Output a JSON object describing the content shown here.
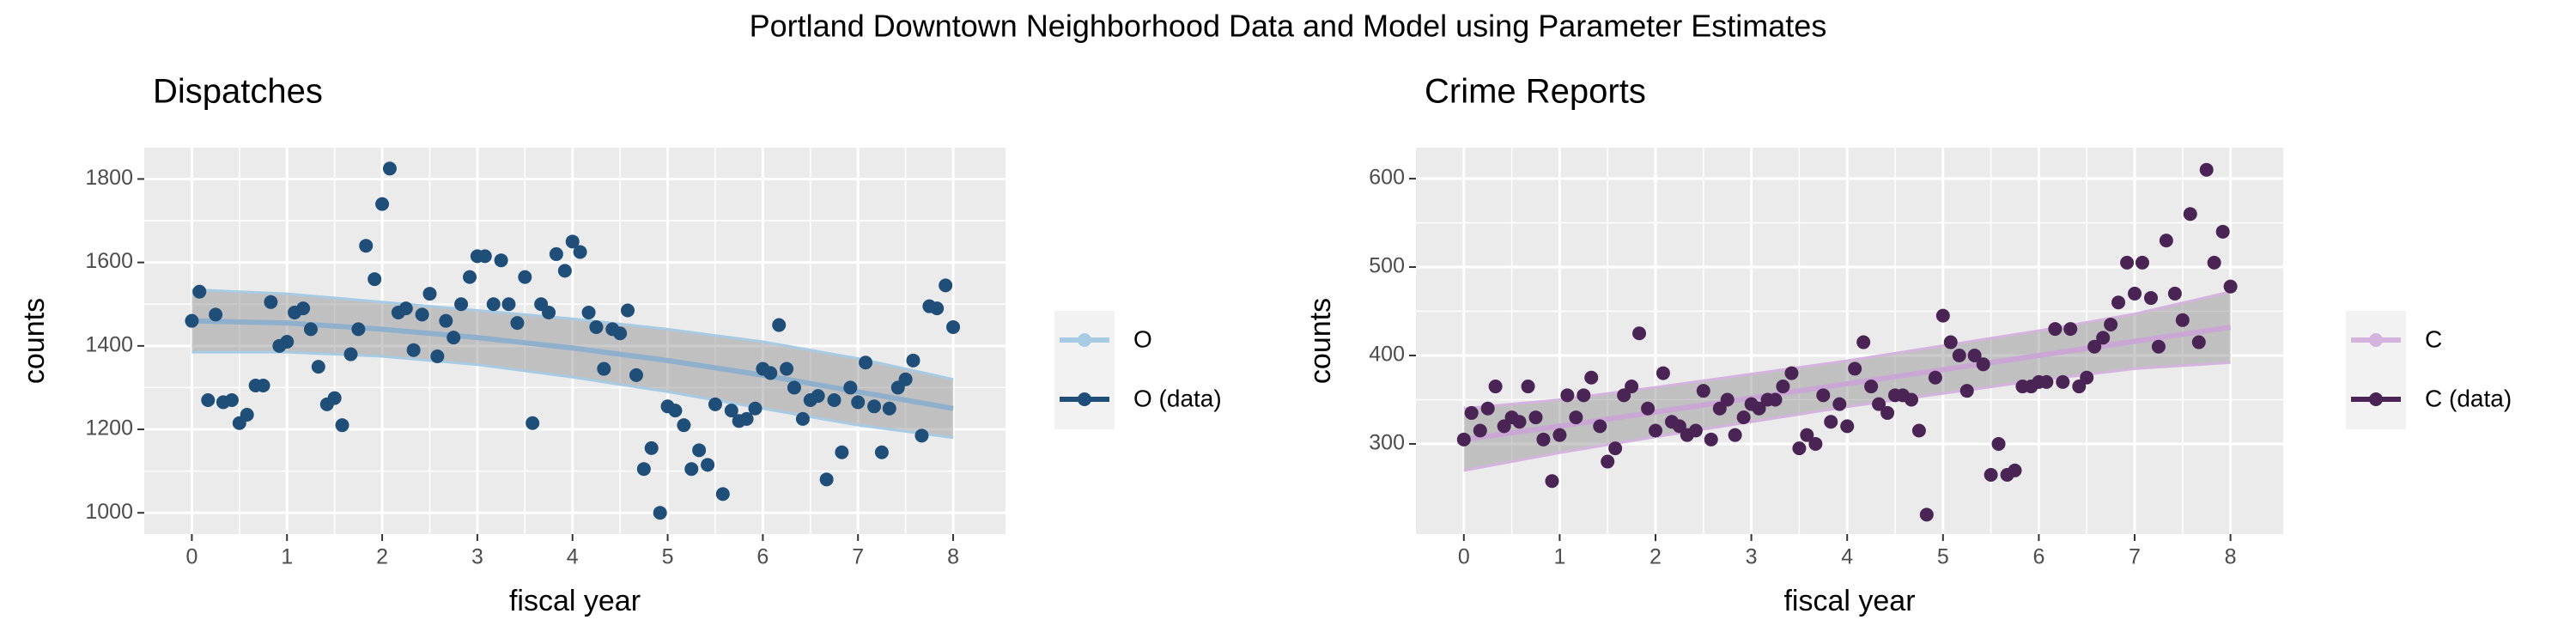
{
  "title": "Portland Downtown Neighborhood Data and Model using Parameter Estimates",
  "chart_data": [
    {
      "type": "line",
      "title": "Dispatches",
      "xlabel": "fiscal year",
      "ylabel": "counts",
      "xlim": [
        -0.5,
        8.55
      ],
      "xticks": [
        0,
        1,
        2,
        3,
        4,
        5,
        6,
        7,
        8
      ],
      "ylim": [
        949,
        1875
      ],
      "yticks": [
        1000,
        1200,
        1400,
        1600,
        1800
      ],
      "grid": true,
      "legend": "right",
      "band_color": "#8c8c8c",
      "series": [
        {
          "name": "O",
          "color": "#a6cbe3",
          "line_color": "#8fb0cc",
          "x": [
            0,
            1,
            2,
            3,
            4,
            5,
            6,
            7,
            8
          ],
          "values": [
            1460,
            1455,
            1440,
            1420,
            1395,
            1365,
            1330,
            1290,
            1250
          ],
          "lower": [
            1385,
            1385,
            1375,
            1355,
            1325,
            1290,
            1250,
            1210,
            1180
          ],
          "upper": [
            1535,
            1525,
            1505,
            1485,
            1465,
            1440,
            1410,
            1370,
            1320
          ]
        },
        {
          "name": "O (data)",
          "color": "#1f4e79",
          "x": [
            0,
            0.08,
            0.17,
            0.25,
            0.33,
            0.42,
            0.5,
            0.58,
            0.67,
            0.75,
            0.83,
            0.92,
            1,
            1.08,
            1.17,
            1.25,
            1.33,
            1.42,
            1.5,
            1.58,
            1.67,
            1.75,
            1.83,
            1.92,
            2,
            2.08,
            2.17,
            2.25,
            2.33,
            2.42,
            2.5,
            2.58,
            2.67,
            2.75,
            2.83,
            2.92,
            3,
            3.08,
            3.17,
            3.25,
            3.33,
            3.42,
            3.5,
            3.58,
            3.67,
            3.75,
            3.83,
            3.92,
            4,
            4.08,
            4.17,
            4.25,
            4.33,
            4.42,
            4.5,
            4.58,
            4.67,
            4.75,
            4.83,
            4.92,
            5,
            5.08,
            5.17,
            5.25,
            5.33,
            5.42,
            5.5,
            5.58,
            5.67,
            5.75,
            5.83,
            5.92,
            6,
            6.08,
            6.17,
            6.25,
            6.33,
            6.42,
            6.5,
            6.58,
            6.67,
            6.75,
            6.83,
            6.92,
            7,
            7.08,
            7.17,
            7.25,
            7.33,
            7.42,
            7.5,
            7.58,
            7.67,
            7.75,
            7.83,
            7.92,
            8
          ],
          "values": [
            1460,
            1530,
            1270,
            1475,
            1265,
            1270,
            1215,
            1235,
            1305,
            1305,
            1505,
            1400,
            1410,
            1480,
            1490,
            1440,
            1350,
            1260,
            1275,
            1210,
            1380,
            1440,
            1640,
            1560,
            1740,
            1825,
            1480,
            1490,
            1390,
            1475,
            1525,
            1375,
            1460,
            1420,
            1500,
            1565,
            1615,
            1615,
            1500,
            1605,
            1500,
            1455,
            1565,
            1215,
            1500,
            1480,
            1620,
            1580,
            1650,
            1625,
            1480,
            1445,
            1345,
            1440,
            1430,
            1485,
            1330,
            1105,
            1155,
            1000,
            1255,
            1245,
            1210,
            1105,
            1150,
            1115,
            1260,
            1045,
            1245,
            1220,
            1225,
            1250,
            1345,
            1335,
            1450,
            1345,
            1300,
            1225,
            1270,
            1280,
            1080,
            1270,
            1145,
            1300,
            1265,
            1360,
            1255,
            1145,
            1250,
            1300,
            1320,
            1365,
            1185,
            1495,
            1490,
            1545,
            1445
          ]
        }
      ]
    },
    {
      "type": "line",
      "title": "Crime Reports",
      "xlabel": "fiscal year",
      "ylabel": "counts",
      "xlim": [
        -0.5,
        8.55
      ],
      "xticks": [
        0,
        1,
        2,
        3,
        4,
        5,
        6,
        7,
        8
      ],
      "ylim": [
        198,
        635
      ],
      "yticks": [
        300,
        400,
        500,
        600
      ],
      "grid": true,
      "legend": "right",
      "band_color": "#8c8c8c",
      "series": [
        {
          "name": "C",
          "color": "#d4b3de",
          "line_color": "#c9a6d4",
          "x": [
            0,
            1,
            2,
            3,
            4,
            5,
            6,
            7,
            8
          ],
          "values": [
            305,
            320,
            336,
            352,
            368,
            384,
            400,
            416,
            432
          ],
          "lower": [
            270,
            290,
            308,
            325,
            342,
            357,
            372,
            385,
            392
          ],
          "upper": [
            340,
            350,
            364,
            379,
            394,
            411,
            428,
            447,
            472
          ]
        },
        {
          "name": "C (data)",
          "color": "#4a2455",
          "x": [
            0,
            0.08,
            0.17,
            0.25,
            0.33,
            0.42,
            0.5,
            0.58,
            0.67,
            0.75,
            0.83,
            0.92,
            1,
            1.08,
            1.17,
            1.25,
            1.33,
            1.42,
            1.5,
            1.58,
            1.67,
            1.75,
            1.83,
            1.92,
            2,
            2.08,
            2.17,
            2.25,
            2.33,
            2.42,
            2.5,
            2.58,
            2.67,
            2.75,
            2.83,
            2.92,
            3,
            3.08,
            3.17,
            3.25,
            3.33,
            3.42,
            3.5,
            3.58,
            3.67,
            3.75,
            3.83,
            3.92,
            4,
            4.08,
            4.17,
            4.25,
            4.33,
            4.42,
            4.5,
            4.58,
            4.67,
            4.75,
            4.83,
            4.92,
            5,
            5.08,
            5.17,
            5.25,
            5.33,
            5.42,
            5.5,
            5.58,
            5.67,
            5.75,
            5.83,
            5.92,
            6,
            6.08,
            6.17,
            6.25,
            6.33,
            6.42,
            6.5,
            6.58,
            6.67,
            6.75,
            6.83,
            6.92,
            7,
            7.08,
            7.17,
            7.25,
            7.33,
            7.42,
            7.5,
            7.58,
            7.67,
            7.75,
            7.83,
            7.92,
            8
          ],
          "values": [
            305,
            335,
            315,
            340,
            365,
            320,
            330,
            325,
            365,
            330,
            305,
            258,
            310,
            355,
            330,
            355,
            375,
            320,
            280,
            295,
            355,
            365,
            425,
            340,
            315,
            380,
            325,
            320,
            310,
            315,
            360,
            305,
            340,
            350,
            310,
            330,
            345,
            340,
            350,
            350,
            365,
            380,
            295,
            310,
            300,
            355,
            325,
            345,
            320,
            385,
            415,
            365,
            345,
            335,
            355,
            355,
            350,
            315,
            220,
            375,
            445,
            415,
            400,
            360,
            400,
            390,
            265,
            300,
            265,
            270,
            365,
            365,
            370,
            370,
            430,
            370,
            430,
            365,
            375,
            410,
            420,
            435,
            460,
            505,
            470,
            505,
            465,
            410,
            530,
            470,
            440,
            560,
            415,
            610,
            505,
            540,
            478
          ]
        }
      ]
    }
  ]
}
